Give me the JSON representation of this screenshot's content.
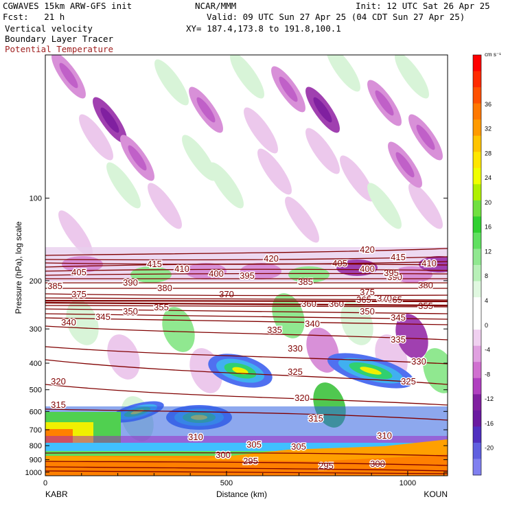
{
  "header": {
    "model_line": "CGWAVES 15km ARW-GFS init",
    "org": "NCAR/MMM",
    "init": "Init: 12 UTC Sat 26 Apr 25",
    "fcst": "Fcst:   21 h",
    "valid": "Valid: 09 UTC Sun 27 Apr 25 (04 CDT Sun 27 Apr 25)",
    "field1": "Vertical velocity",
    "field2": "Boundary Layer Tracer",
    "field3": "Potential Temperature",
    "xy": "XY= 187.4,173.8 to 191.8,100.1",
    "field3_color": "#a02020"
  },
  "chart_data": {
    "type": "heatmap",
    "title": "Vertical velocity",
    "xlabel": "Distance (km)",
    "ylabel": "Pressure (hPa), log scale",
    "x_ticks": [
      0,
      500,
      1000
    ],
    "x_range": [
      0,
      1110
    ],
    "x_end_labels": {
      "left": "KABR",
      "right": "KOUN"
    },
    "y_ticks": [
      100,
      200,
      300,
      400,
      500,
      600,
      700,
      800,
      900,
      1000
    ],
    "y_range_hpa": [
      30,
      1030
    ],
    "y_scale": "log",
    "colorbar": {
      "unit": "cm s⁻¹",
      "labels": [
        36,
        32,
        28,
        24,
        20,
        16,
        12,
        8,
        4,
        0,
        -4,
        -8,
        -12,
        -16,
        -20
      ],
      "colors": [
        "#ff0000",
        "#ff2a00",
        "#ff5000",
        "#ff7800",
        "#ff9a00",
        "#ffc400",
        "#ffe600",
        "#f0ff00",
        "#b0f000",
        "#70e040",
        "#30d030",
        "#60e060",
        "#90e890",
        "#b8f0b8",
        "#e0f8e0",
        "#ffffff",
        "#ffffff",
        "#f0d0f0",
        "#e0a0e0",
        "#d070d0",
        "#b040c0",
        "#8020a0",
        "#6a1aa0",
        "#5030c0",
        "#6060e0",
        "#8080f0"
      ]
    },
    "theta_isentropes": {
      "color": "#800000",
      "labels": [
        295,
        300,
        305,
        310,
        315,
        320,
        325,
        330,
        335,
        340,
        345,
        350,
        355,
        360,
        365,
        370,
        375,
        380,
        385,
        390,
        395,
        400,
        405,
        410,
        415,
        420
      ]
    }
  }
}
